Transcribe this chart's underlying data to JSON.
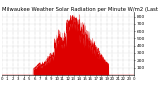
{
  "title": "Milwaukee Weather Solar Radiation per Minute W/m2 (Last 24 Hours)",
  "title_fontsize": 3.8,
  "bar_color": "#dd0000",
  "background_color": "#ffffff",
  "grid_color": "#aaaaaa",
  "num_points": 1440,
  "peak_value": 800,
  "ylim": [
    0,
    860
  ],
  "yticks": [
    100,
    200,
    300,
    400,
    500,
    600,
    700,
    800
  ],
  "ytick_fontsize": 3.2,
  "xtick_fontsize": 2.8,
  "vgrid_positions": [
    0,
    60,
    120,
    180,
    240,
    300,
    360,
    420,
    480,
    540,
    600,
    660,
    720,
    780,
    840,
    900,
    960,
    1020,
    1080,
    1140,
    1200,
    1260,
    1320,
    1380,
    1440
  ]
}
